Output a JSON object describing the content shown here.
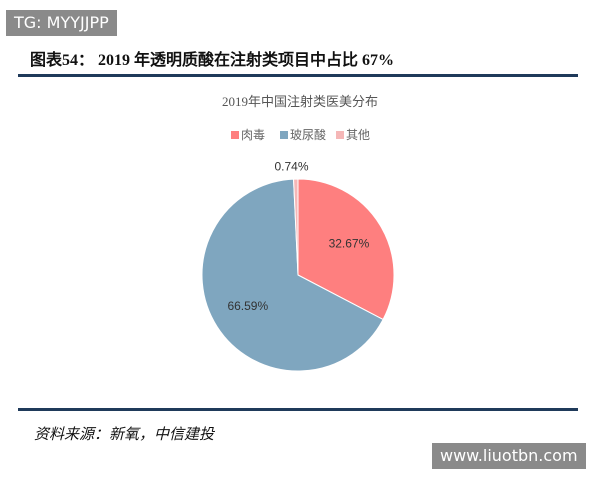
{
  "header_watermark": "TG: MYYJJPP",
  "heading": "图表54： 2019 年透明质酸在注射类项目中占比 67%",
  "chart_data": {
    "type": "pie",
    "title": "2019年中国注射类医美分布",
    "categories": [
      "肉毒",
      "玻尿酸",
      "其他"
    ],
    "values": [
      32.67,
      66.59,
      0.74
    ],
    "value_labels": [
      "32.67%",
      "66.59%",
      "0.74%"
    ],
    "colors": [
      "#fe7f7f",
      "#7fa6bf",
      "#f5b7b7"
    ]
  },
  "source": "资料来源：新氧，中信建投",
  "footer_watermark": "www.liuotbn.com"
}
